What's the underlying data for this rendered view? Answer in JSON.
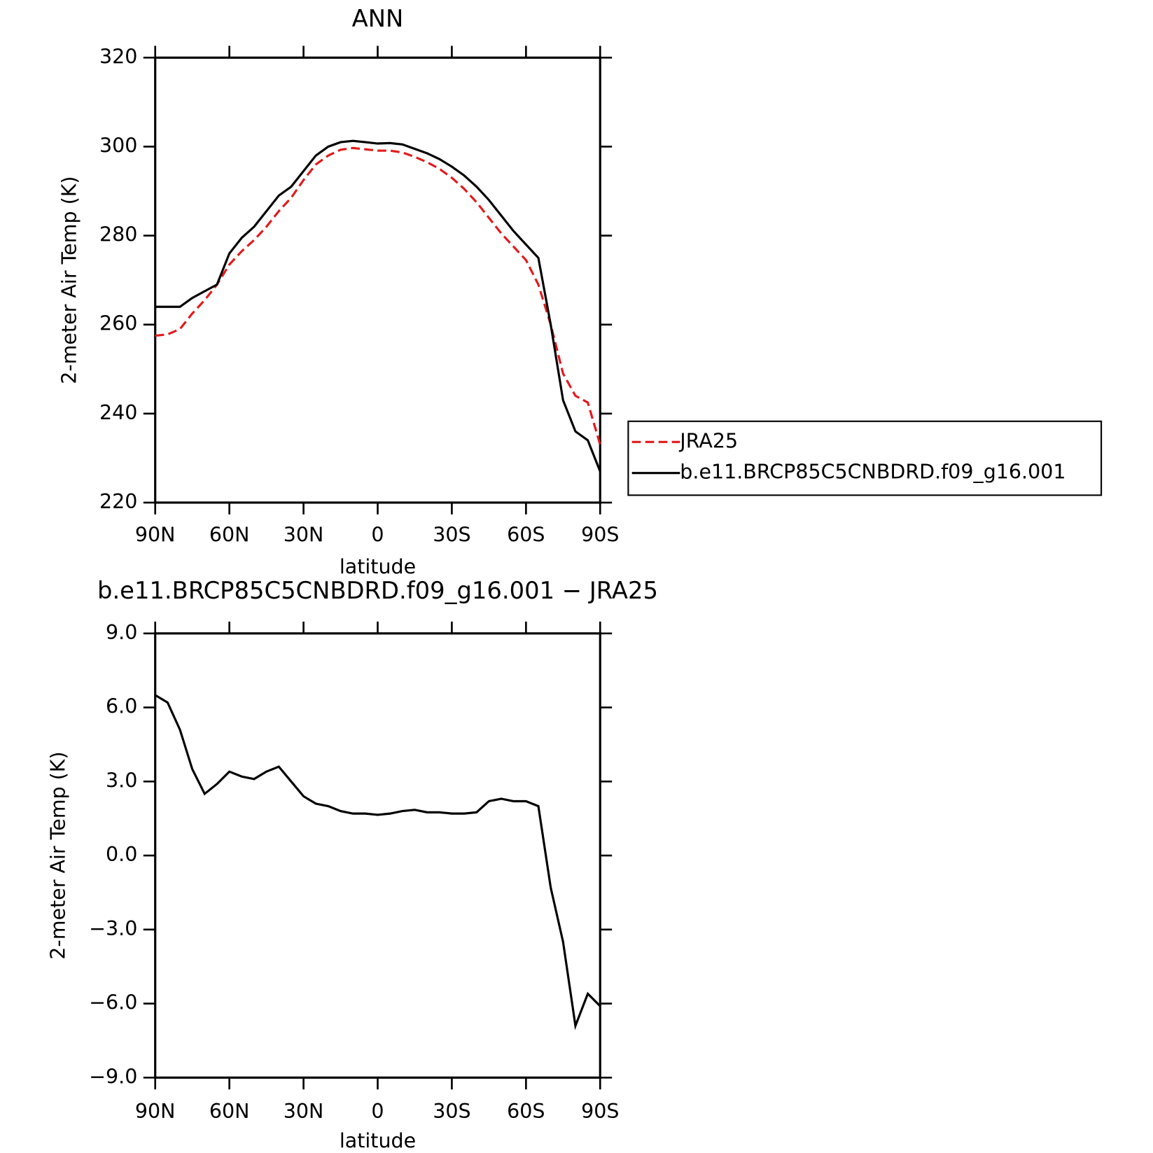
{
  "chart_data": [
    {
      "type": "line",
      "title": "ANN",
      "x_label": "latitude",
      "y_label": "2-meter Air Temp (K)",
      "x": [
        90,
        85,
        80,
        75,
        70,
        65,
        60,
        55,
        50,
        45,
        40,
        35,
        30,
        25,
        20,
        15,
        10,
        5,
        0,
        -5,
        -10,
        -15,
        -20,
        -25,
        -30,
        -35,
        -40,
        -45,
        -50,
        -55,
        -60,
        -65,
        -70,
        -75,
        -80,
        -85,
        -90
      ],
      "xlim": [
        90,
        -90
      ],
      "xticks": [
        {
          "value": 90,
          "label": "90N"
        },
        {
          "value": 60,
          "label": "60N"
        },
        {
          "value": 30,
          "label": "30N"
        },
        0,
        {
          "value": -30,
          "label": "30S"
        },
        {
          "value": -60,
          "label": "60S"
        },
        {
          "value": -90,
          "label": "90S"
        }
      ],
      "ylim": [
        220,
        320
      ],
      "yticks": [
        220,
        240,
        260,
        280,
        300,
        320
      ],
      "legend": "right",
      "series": [
        {
          "name": "JRA25",
          "color": "#e31a1c",
          "linestyle": "dashed",
          "values": [
            257.5,
            257.8,
            259,
            262.5,
            265.5,
            269,
            273.5,
            276.5,
            279,
            282,
            285.5,
            288.5,
            292.5,
            296,
            298,
            299.3,
            299.7,
            299.4,
            299.1,
            299.1,
            298.7,
            297.7,
            296.5,
            295,
            293,
            290.5,
            287.5,
            284,
            280.5,
            277.5,
            274.5,
            269,
            260,
            249,
            244,
            242.5,
            233
          ]
        },
        {
          "name": "b.e11.BRCP85C5CNBDRD.f09_g16.001",
          "color": "#000000",
          "linestyle": "solid",
          "values": [
            264,
            264,
            264,
            266,
            267.5,
            269,
            276,
            279.5,
            282,
            285.5,
            289,
            291,
            294.5,
            298,
            300,
            301,
            301.3,
            301,
            300.7,
            300.8,
            300.5,
            299.5,
            298.5,
            297.2,
            295.5,
            293.5,
            291,
            288,
            284.5,
            281,
            278,
            275,
            260,
            243,
            236,
            234,
            227
          ]
        }
      ]
    },
    {
      "type": "line",
      "title": "b.e11.BRCP85C5CNBDRD.f09_g16.001 − JRA25",
      "x_label": "latitude",
      "y_label": "2-meter Air Temp (K)",
      "x": [
        90,
        85,
        80,
        75,
        70,
        65,
        60,
        55,
        50,
        45,
        40,
        35,
        30,
        25,
        20,
        15,
        10,
        5,
        0,
        -5,
        -10,
        -15,
        -20,
        -25,
        -30,
        -35,
        -40,
        -45,
        -50,
        -55,
        -60,
        -65,
        -70,
        -75,
        -80,
        -85,
        -90
      ],
      "xlim": [
        90,
        -90
      ],
      "xticks": [
        {
          "value": 90,
          "label": "90N"
        },
        {
          "value": 60,
          "label": "60N"
        },
        {
          "value": 30,
          "label": "30N"
        },
        0,
        {
          "value": -30,
          "label": "30S"
        },
        {
          "value": -60,
          "label": "60S"
        },
        {
          "value": -90,
          "label": "90S"
        }
      ],
      "ylim": [
        -9,
        9
      ],
      "yticks": [
        {
          "value": -9,
          "label": "−9.0"
        },
        {
          "value": -6,
          "label": "−6.0"
        },
        {
          "value": -3,
          "label": "−3.0"
        },
        {
          "value": 0,
          "label": "0.0"
        },
        {
          "value": 3,
          "label": "3.0"
        },
        {
          "value": 6,
          "label": "6.0"
        },
        {
          "value": 9,
          "label": "9.0"
        }
      ],
      "series": [
        {
          "color": "#000000",
          "linestyle": "solid",
          "values": [
            6.5,
            6.2,
            5.1,
            3.5,
            2.5,
            2.9,
            3.4,
            3.2,
            3.1,
            3.4,
            3.6,
            3.0,
            2.4,
            2.1,
            2.0,
            1.8,
            1.7,
            1.7,
            1.65,
            1.7,
            1.8,
            1.85,
            1.75,
            1.75,
            1.7,
            1.7,
            1.75,
            2.2,
            2.3,
            2.2,
            2.2,
            2.0,
            -1.3,
            -3.5,
            -6.9,
            -5.6,
            -6.1
          ]
        }
      ]
    }
  ]
}
